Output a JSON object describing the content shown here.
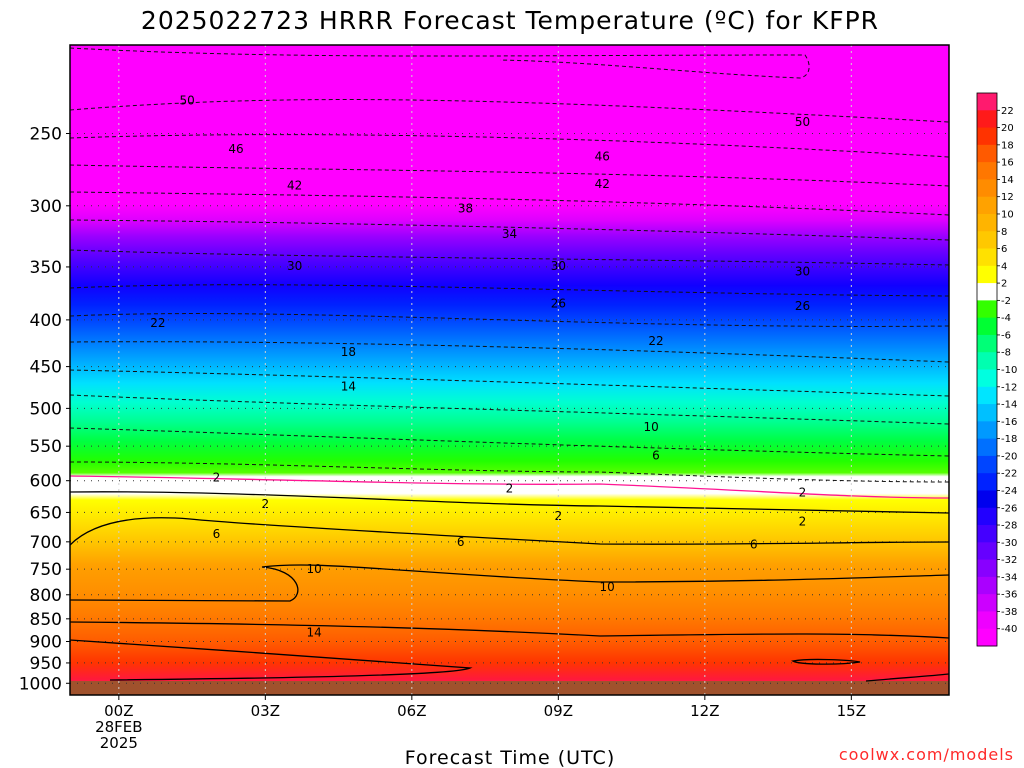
{
  "chart_data": {
    "type": "heatmap",
    "title": "2025022723 HRRR Forecast Temperature (ºC) for KFPR",
    "xlabel": "Forecast Time (UTC)",
    "ylabel": "",
    "credit": "coolwx.com/models",
    "y_scale": "log",
    "y_inverted": true,
    "ylim_hPa": [
      1030,
      200
    ],
    "xlim_hours": [
      -1,
      17
    ],
    "y_ticks": [
      250,
      300,
      350,
      400,
      450,
      500,
      550,
      600,
      650,
      700,
      750,
      800,
      850,
      900,
      950,
      1000
    ],
    "x_ticks": [
      {
        "hour": 0,
        "lines": [
          "00Z",
          "28FEB",
          "2025"
        ]
      },
      {
        "hour": 3,
        "lines": [
          "03Z"
        ]
      },
      {
        "hour": 6,
        "lines": [
          "06Z"
        ]
      },
      {
        "hour": 9,
        "lines": [
          "09Z"
        ]
      },
      {
        "hour": 12,
        "lines": [
          "12Z"
        ]
      },
      {
        "hour": 15,
        "lines": [
          "15Z"
        ]
      }
    ],
    "colorbar": {
      "labels": [
        "22",
        "20",
        "18",
        "16",
        "14",
        "12",
        "10",
        "8",
        "6",
        "4",
        "2",
        "-2",
        "-4",
        "-6",
        "-8",
        "-10",
        "-12",
        "-14",
        "-16",
        "-18",
        "-20",
        "-22",
        "-24",
        "-26",
        "-28",
        "-30",
        "-32",
        "-34",
        "-36",
        "-38",
        "-40"
      ],
      "colors": [
        "#ff1a6e",
        "#ff1a1a",
        "#ff3300",
        "#ff5a00",
        "#ff7700",
        "#ff8c00",
        "#ffa200",
        "#ffb400",
        "#ffc800",
        "#ffe100",
        "#ffff00",
        "#ffffff",
        "#33ff00",
        "#00ff33",
        "#00ff77",
        "#00ffb0",
        "#00ffe0",
        "#00e5ff",
        "#00c0ff",
        "#0099ff",
        "#0070ff",
        "#0045ff",
        "#0022ff",
        "#0000ee",
        "#2200ff",
        "#4400ff",
        "#6600ff",
        "#8800ff",
        "#aa00ff",
        "#cc00ff",
        "#ee00ff",
        "#ff00ff"
      ]
    },
    "contour_labels": [
      {
        "hour": 1.4,
        "p": 230,
        "text": "50"
      },
      {
        "hour": 14.0,
        "p": 243,
        "text": "50"
      },
      {
        "hour": 2.4,
        "p": 260,
        "text": "46"
      },
      {
        "hour": 9.9,
        "p": 265,
        "text": "46"
      },
      {
        "hour": 3.6,
        "p": 285,
        "text": "42"
      },
      {
        "hour": 9.9,
        "p": 284,
        "text": "42"
      },
      {
        "hour": 7.1,
        "p": 302,
        "text": "38"
      },
      {
        "hour": 8.0,
        "p": 322,
        "text": "34"
      },
      {
        "hour": 3.6,
        "p": 349,
        "text": "30"
      },
      {
        "hour": 9.0,
        "p": 349,
        "text": "30"
      },
      {
        "hour": 14.0,
        "p": 354,
        "text": "30"
      },
      {
        "hour": 9.0,
        "p": 384,
        "text": "26"
      },
      {
        "hour": 14.0,
        "p": 386,
        "text": "26"
      },
      {
        "hour": 0.8,
        "p": 403,
        "text": "22"
      },
      {
        "hour": 11.0,
        "p": 422,
        "text": "22"
      },
      {
        "hour": 4.7,
        "p": 434,
        "text": "18"
      },
      {
        "hour": 4.7,
        "p": 473,
        "text": "14"
      },
      {
        "hour": 10.9,
        "p": 524,
        "text": "10"
      },
      {
        "hour": 11.0,
        "p": 563,
        "text": "6"
      },
      {
        "hour": 2.0,
        "p": 595,
        "text": "2"
      },
      {
        "hour": 8.0,
        "p": 612,
        "text": "2"
      },
      {
        "hour": 14.0,
        "p": 618,
        "text": "2"
      },
      {
        "hour": 3.0,
        "p": 636,
        "text": "2"
      },
      {
        "hour": 9.0,
        "p": 656,
        "text": "2"
      },
      {
        "hour": 14.0,
        "p": 665,
        "text": "2"
      },
      {
        "hour": 2.0,
        "p": 686,
        "text": "6"
      },
      {
        "hour": 7.0,
        "p": 700,
        "text": "6"
      },
      {
        "hour": 13.0,
        "p": 705,
        "text": "6"
      },
      {
        "hour": 4.0,
        "p": 750,
        "text": "10"
      },
      {
        "hour": 10.0,
        "p": 784,
        "text": "10"
      },
      {
        "hour": 4.0,
        "p": 880,
        "text": "14"
      }
    ]
  }
}
